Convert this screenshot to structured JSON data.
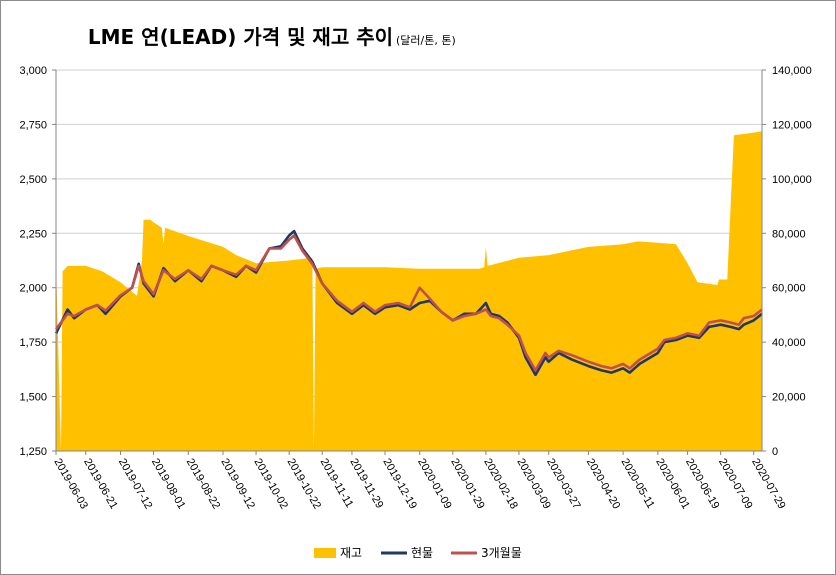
{
  "chart_data": {
    "type": "area",
    "title": "LME 연(LEAD) 가격 및 재고 추이",
    "subtitle": "(달러/톤, 톤)",
    "ylim_left": [
      1250,
      3000
    ],
    "ylim_right": [
      0,
      140000
    ],
    "left_ticks": [
      "1,250",
      "1,500",
      "1,750",
      "2,000",
      "2,250",
      "2,500",
      "2,750",
      "3,000"
    ],
    "right_ticks": [
      "0",
      "20,000",
      "40,000",
      "60,000",
      "80,000",
      "100,000",
      "120,000",
      "140,000"
    ],
    "x_ticks": [
      "2019-06-03",
      "2019-06-21",
      "2019-07-12",
      "2019-08-01",
      "2019-08-22",
      "2019-09-12",
      "2019-10-02",
      "2019-10-22",
      "2019-11-11",
      "2019-11-29",
      "2019-12-19",
      "2020-01-09",
      "2020-01-29",
      "2020-02-18",
      "2020-03-09",
      "2020-03-27",
      "2020-04-20",
      "2020-05-11",
      "2020-06-01",
      "2020-06-19",
      "2020-07-09",
      "2020-07-29"
    ],
    "grid": true,
    "legend_position": "bottom",
    "colors": {
      "inventory": "#FFC000",
      "spot": "#1F3864",
      "three_month": "#C0504D"
    },
    "series": [
      {
        "name": "재고",
        "axis": "right",
        "type": "area",
        "points": [
          [
            "2019-06-03",
            69000
          ],
          [
            "2019-06-06",
            0
          ],
          [
            "2019-06-07",
            66000
          ],
          [
            "2019-06-10",
            68000
          ],
          [
            "2019-06-21",
            68000
          ],
          [
            "2019-07-01",
            66000
          ],
          [
            "2019-07-12",
            62000
          ],
          [
            "2019-07-22",
            57000
          ],
          [
            "2019-07-25",
            70000
          ],
          [
            "2019-07-26",
            85000
          ],
          [
            "2019-07-30",
            85000
          ],
          [
            "2019-08-01",
            84000
          ],
          [
            "2019-08-06",
            82000
          ],
          [
            "2019-08-07",
            76000
          ],
          [
            "2019-08-08",
            82000
          ],
          [
            "2019-08-22",
            79000
          ],
          [
            "2019-09-12",
            75000
          ],
          [
            "2019-09-20",
            72000
          ],
          [
            "2019-10-02",
            69000
          ],
          [
            "2019-10-22",
            70000
          ],
          [
            "2019-11-05",
            71000
          ],
          [
            "2019-11-06",
            0
          ],
          [
            "2019-11-07",
            67000
          ],
          [
            "2019-11-11",
            67500
          ],
          [
            "2019-11-29",
            67500
          ],
          [
            "2019-12-19",
            67500
          ],
          [
            "2020-01-09",
            67000
          ],
          [
            "2020-01-29",
            67000
          ],
          [
            "2020-02-14",
            67000
          ],
          [
            "2020-02-17",
            67500
          ],
          [
            "2020-02-18",
            75000
          ],
          [
            "2020-02-19",
            68000
          ],
          [
            "2020-03-09",
            71000
          ],
          [
            "2020-03-27",
            72000
          ],
          [
            "2020-04-20",
            75000
          ],
          [
            "2020-05-11",
            76000
          ],
          [
            "2020-05-20",
            77000
          ],
          [
            "2020-06-01",
            76500
          ],
          [
            "2020-06-12",
            76000
          ],
          [
            "2020-06-19",
            69000
          ],
          [
            "2020-06-25",
            62000
          ],
          [
            "2020-07-01",
            61500
          ],
          [
            "2020-07-07",
            61000
          ],
          [
            "2020-07-08",
            63000
          ],
          [
            "2020-07-13",
            63000
          ],
          [
            "2020-07-15",
            90000
          ],
          [
            "2020-07-17",
            116000
          ],
          [
            "2020-07-29",
            117000
          ],
          [
            "2020-08-03",
            117500
          ]
        ]
      },
      {
        "name": "현물",
        "axis": "left",
        "type": "line",
        "points": [
          [
            "2019-06-03",
            1790
          ],
          [
            "2019-06-10",
            1900
          ],
          [
            "2019-06-14",
            1860
          ],
          [
            "2019-06-21",
            1900
          ],
          [
            "2019-06-28",
            1920
          ],
          [
            "2019-07-03",
            1880
          ],
          [
            "2019-07-12",
            1960
          ],
          [
            "2019-07-19",
            2000
          ],
          [
            "2019-07-23",
            2110
          ],
          [
            "2019-07-26",
            2020
          ],
          [
            "2019-08-01",
            1960
          ],
          [
            "2019-08-07",
            2090
          ],
          [
            "2019-08-14",
            2030
          ],
          [
            "2019-08-22",
            2080
          ],
          [
            "2019-08-30",
            2030
          ],
          [
            "2019-09-05",
            2100
          ],
          [
            "2019-09-12",
            2080
          ],
          [
            "2019-09-20",
            2050
          ],
          [
            "2019-09-26",
            2100
          ],
          [
            "2019-10-02",
            2070
          ],
          [
            "2019-10-10",
            2180
          ],
          [
            "2019-10-17",
            2190
          ],
          [
            "2019-10-22",
            2240
          ],
          [
            "2019-10-25",
            2260
          ],
          [
            "2019-10-30",
            2180
          ],
          [
            "2019-11-05",
            2120
          ],
          [
            "2019-11-11",
            2020
          ],
          [
            "2019-11-20",
            1930
          ],
          [
            "2019-11-29",
            1880
          ],
          [
            "2019-12-06",
            1920
          ],
          [
            "2019-12-13",
            1880
          ],
          [
            "2019-12-19",
            1910
          ],
          [
            "2019-12-27",
            1920
          ],
          [
            "2020-01-03",
            1900
          ],
          [
            "2020-01-09",
            1930
          ],
          [
            "2020-01-15",
            1940
          ],
          [
            "2020-01-22",
            1890
          ],
          [
            "2020-01-29",
            1850
          ],
          [
            "2020-02-05",
            1880
          ],
          [
            "2020-02-12",
            1880
          ],
          [
            "2020-02-18",
            1930
          ],
          [
            "2020-02-21",
            1880
          ],
          [
            "2020-02-26",
            1870
          ],
          [
            "2020-03-02",
            1840
          ],
          [
            "2020-03-09",
            1770
          ],
          [
            "2020-03-13",
            1680
          ],
          [
            "2020-03-19",
            1600
          ],
          [
            "2020-03-25",
            1680
          ],
          [
            "2020-03-27",
            1660
          ],
          [
            "2020-04-02",
            1700
          ],
          [
            "2020-04-10",
            1670
          ],
          [
            "2020-04-20",
            1640
          ],
          [
            "2020-04-28",
            1620
          ],
          [
            "2020-05-04",
            1610
          ],
          [
            "2020-05-11",
            1630
          ],
          [
            "2020-05-15",
            1610
          ],
          [
            "2020-05-21",
            1650
          ],
          [
            "2020-06-01",
            1700
          ],
          [
            "2020-06-05",
            1750
          ],
          [
            "2020-06-12",
            1760
          ],
          [
            "2020-06-19",
            1780
          ],
          [
            "2020-06-26",
            1770
          ],
          [
            "2020-07-02",
            1820
          ],
          [
            "2020-07-09",
            1830
          ],
          [
            "2020-07-15",
            1820
          ],
          [
            "2020-07-20",
            1810
          ],
          [
            "2020-07-23",
            1830
          ],
          [
            "2020-07-29",
            1850
          ],
          [
            "2020-08-03",
            1880
          ]
        ]
      },
      {
        "name": "3개월물",
        "axis": "left",
        "type": "line",
        "points": [
          [
            "2019-06-03",
            1810
          ],
          [
            "2019-06-10",
            1880
          ],
          [
            "2019-06-14",
            1870
          ],
          [
            "2019-06-21",
            1900
          ],
          [
            "2019-06-28",
            1920
          ],
          [
            "2019-07-03",
            1895
          ],
          [
            "2019-07-12",
            1965
          ],
          [
            "2019-07-19",
            2000
          ],
          [
            "2019-07-23",
            2100
          ],
          [
            "2019-07-26",
            2030
          ],
          [
            "2019-08-01",
            1970
          ],
          [
            "2019-08-07",
            2080
          ],
          [
            "2019-08-14",
            2040
          ],
          [
            "2019-08-22",
            2080
          ],
          [
            "2019-08-30",
            2040
          ],
          [
            "2019-09-05",
            2100
          ],
          [
            "2019-09-12",
            2080
          ],
          [
            "2019-09-20",
            2060
          ],
          [
            "2019-09-26",
            2100
          ],
          [
            "2019-10-02",
            2080
          ],
          [
            "2019-10-10",
            2180
          ],
          [
            "2019-10-17",
            2180
          ],
          [
            "2019-10-22",
            2220
          ],
          [
            "2019-10-25",
            2240
          ],
          [
            "2019-10-30",
            2170
          ],
          [
            "2019-11-05",
            2110
          ],
          [
            "2019-11-11",
            2020
          ],
          [
            "2019-11-20",
            1940
          ],
          [
            "2019-11-29",
            1890
          ],
          [
            "2019-12-06",
            1930
          ],
          [
            "2019-12-13",
            1890
          ],
          [
            "2019-12-19",
            1920
          ],
          [
            "2019-12-27",
            1930
          ],
          [
            "2020-01-03",
            1910
          ],
          [
            "2020-01-09",
            2000
          ],
          [
            "2020-01-15",
            1950
          ],
          [
            "2020-01-22",
            1890
          ],
          [
            "2020-01-29",
            1850
          ],
          [
            "2020-02-05",
            1870
          ],
          [
            "2020-02-12",
            1880
          ],
          [
            "2020-02-18",
            1900
          ],
          [
            "2020-02-21",
            1870
          ],
          [
            "2020-02-26",
            1860
          ],
          [
            "2020-03-02",
            1830
          ],
          [
            "2020-03-09",
            1780
          ],
          [
            "2020-03-13",
            1700
          ],
          [
            "2020-03-19",
            1620
          ],
          [
            "2020-03-25",
            1700
          ],
          [
            "2020-03-27",
            1680
          ],
          [
            "2020-04-02",
            1710
          ],
          [
            "2020-04-10",
            1690
          ],
          [
            "2020-04-20",
            1660
          ],
          [
            "2020-04-28",
            1640
          ],
          [
            "2020-05-04",
            1630
          ],
          [
            "2020-05-11",
            1650
          ],
          [
            "2020-05-15",
            1630
          ],
          [
            "2020-05-21",
            1670
          ],
          [
            "2020-06-01",
            1720
          ],
          [
            "2020-06-05",
            1760
          ],
          [
            "2020-06-12",
            1770
          ],
          [
            "2020-06-19",
            1790
          ],
          [
            "2020-06-26",
            1780
          ],
          [
            "2020-07-02",
            1840
          ],
          [
            "2020-07-09",
            1850
          ],
          [
            "2020-07-15",
            1840
          ],
          [
            "2020-07-20",
            1830
          ],
          [
            "2020-07-23",
            1860
          ],
          [
            "2020-07-29",
            1870
          ],
          [
            "2020-08-03",
            1900
          ]
        ]
      }
    ]
  }
}
